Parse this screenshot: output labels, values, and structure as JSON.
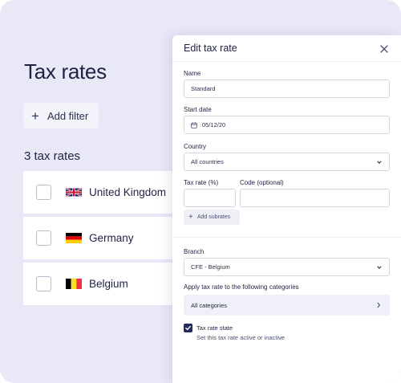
{
  "main": {
    "title": "Tax rates",
    "add_filter_label": "Add filter",
    "count_label": "3 tax rates",
    "rows": [
      {
        "country": "United Kingdom",
        "flag": "uk-flag-icon"
      },
      {
        "country": "Germany",
        "flag": "germany-flag-icon"
      },
      {
        "country": "Belgium",
        "flag": "belgium-flag-icon"
      }
    ]
  },
  "panel": {
    "title": "Edit tax rate",
    "name": {
      "label": "Name",
      "value": "Standard"
    },
    "start_date": {
      "label": "Start date",
      "value": "05/12/20"
    },
    "country": {
      "label": "Country",
      "value": "All countries"
    },
    "tax_rate": {
      "label": "Tax rate (%)",
      "value": ""
    },
    "code": {
      "label": "Code (optional)",
      "value": ""
    },
    "add_subrates_label": "Add subrates",
    "branch": {
      "label": "Branch",
      "value": "CFE - Belgium"
    },
    "categories": {
      "label": "Apply tax rate to the following categories",
      "value": "All categories"
    },
    "state": {
      "label": "Tax rate state",
      "description": "Set this tax rate active or inactive",
      "checked": true
    }
  },
  "colors": {
    "background": "#e8e8f7",
    "accent": "#232a5c",
    "text": "#1f2342"
  }
}
